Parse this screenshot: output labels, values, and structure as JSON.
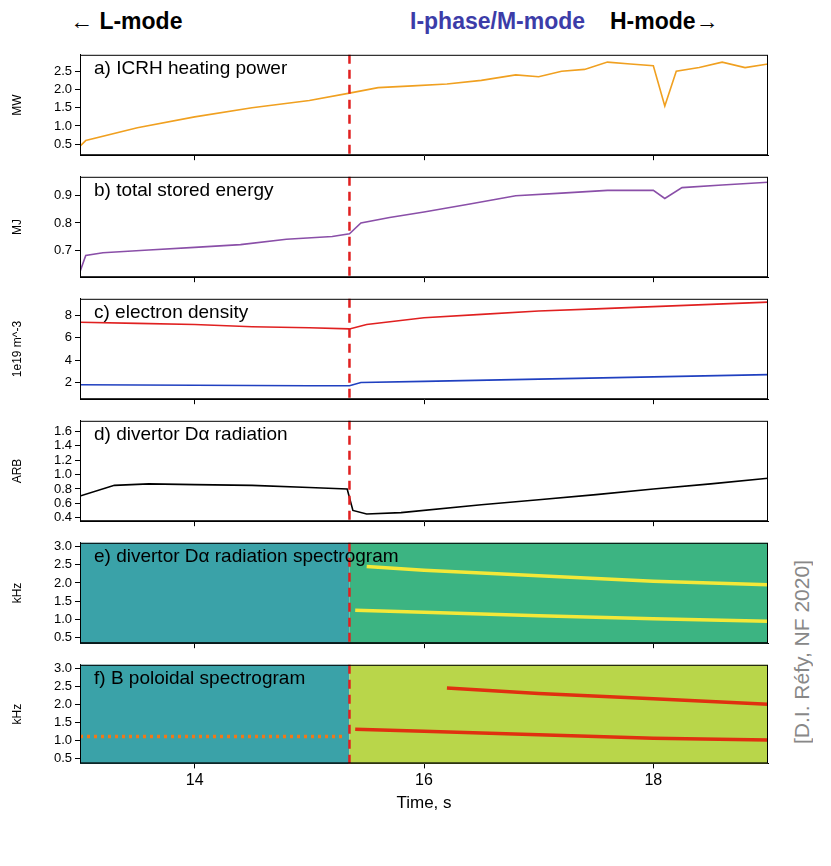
{
  "header": {
    "left": "← L-mode",
    "middle": "I-phase/M-mode",
    "right": "H-mode→"
  },
  "citation": "[D.I. Réfy, NF 2020]",
  "transition_time": 15.35,
  "chart_data": [
    {
      "type": "line",
      "title": "a) ICRH heating power",
      "y_label": "MW",
      "xlim": [
        13.0,
        19.0
      ],
      "xticks": [
        14,
        16,
        18
      ],
      "ylim": [
        0.2,
        2.95
      ],
      "yticks": [
        0.5,
        {
          "value": 1,
          "label": "1.0"
        },
        1.5,
        {
          "value": 2,
          "label": "2.0"
        },
        2.5
      ],
      "grid": false,
      "tick_labels": "y",
      "series": [
        {
          "color": "#f0a020",
          "x": [
            13.0,
            13.05,
            13.5,
            14.0,
            14.5,
            15.0,
            15.35,
            15.6,
            15.9,
            16.2,
            16.5,
            16.8,
            17.0,
            17.2,
            17.4,
            17.6,
            17.8,
            18.0,
            18.1,
            18.2,
            18.4,
            18.6,
            18.8,
            19.0
          ],
          "values": [
            0.45,
            0.6,
            0.95,
            1.25,
            1.5,
            1.7,
            1.9,
            2.05,
            2.1,
            2.15,
            2.25,
            2.4,
            2.35,
            2.5,
            2.55,
            2.75,
            2.7,
            2.65,
            1.55,
            2.5,
            2.6,
            2.75,
            2.6,
            2.7
          ]
        }
      ]
    },
    {
      "type": "line",
      "title": "b) total stored energy",
      "y_label": "MJ",
      "xlim": [
        13.0,
        19.0
      ],
      "xticks": [
        14,
        16,
        18
      ],
      "ylim": [
        0.6,
        0.97
      ],
      "yticks": [
        0.7,
        0.8,
        0.9
      ],
      "grid": false,
      "tick_labels": "y",
      "series": [
        {
          "color": "#8a4fa8",
          "x": [
            13.0,
            13.05,
            13.2,
            13.6,
            14.0,
            14.4,
            14.8,
            15.2,
            15.35,
            15.45,
            15.7,
            16.0,
            16.4,
            16.8,
            17.2,
            17.6,
            18.0,
            18.1,
            18.25,
            18.6,
            19.0
          ],
          "values": [
            0.62,
            0.68,
            0.69,
            0.7,
            0.71,
            0.72,
            0.74,
            0.75,
            0.76,
            0.8,
            0.82,
            0.84,
            0.87,
            0.9,
            0.91,
            0.92,
            0.92,
            0.89,
            0.93,
            0.94,
            0.95
          ]
        }
      ]
    },
    {
      "type": "line",
      "title": "c) electron density",
      "y_label": "1e19 m^-3",
      "xlim": [
        13.0,
        19.0
      ],
      "xticks": [
        14,
        16,
        18
      ],
      "ylim": [
        0.5,
        9.5
      ],
      "yticks": [
        2,
        4,
        6,
        8
      ],
      "grid": false,
      "tick_labels": "y",
      "series": [
        {
          "color": "#e02020",
          "x": [
            13.0,
            13.5,
            14.0,
            14.5,
            15.0,
            15.35,
            15.5,
            16.0,
            16.5,
            17.0,
            17.5,
            18.0,
            18.5,
            19.0
          ],
          "values": [
            7.4,
            7.3,
            7.2,
            7.0,
            6.9,
            6.8,
            7.2,
            7.8,
            8.1,
            8.4,
            8.6,
            8.8,
            9.0,
            9.2
          ]
        },
        {
          "color": "#2040c0",
          "x": [
            13.0,
            14.0,
            15.0,
            15.35,
            15.45,
            16.0,
            17.0,
            18.0,
            19.0
          ],
          "values": [
            1.8,
            1.75,
            1.7,
            1.7,
            2.0,
            2.1,
            2.3,
            2.5,
            2.7
          ]
        }
      ]
    },
    {
      "type": "line",
      "title": "d) divertor Dα radiation",
      "y_label": "ARB",
      "xlim": [
        13.0,
        19.0
      ],
      "xticks": [
        14,
        16,
        18
      ],
      "ylim": [
        0.35,
        1.75
      ],
      "yticks": [
        0.4,
        0.6,
        0.8,
        {
          "value": 1,
          "label": "1.0"
        },
        1.2,
        1.4,
        1.6
      ],
      "grid": false,
      "tick_labels": "y",
      "series": [
        {
          "color": "#000000",
          "x": [
            13.0,
            13.3,
            13.6,
            14.0,
            14.5,
            15.0,
            15.33,
            15.38,
            15.5,
            15.8,
            16.5,
            17.0,
            17.5,
            18.0,
            18.5,
            19.0
          ],
          "values": [
            0.7,
            0.85,
            0.87,
            0.86,
            0.85,
            0.82,
            0.8,
            0.5,
            0.45,
            0.47,
            0.58,
            0.65,
            0.72,
            0.8,
            0.87,
            0.95
          ]
        }
      ]
    },
    {
      "type": "spectrogram",
      "title": "e) divertor Dα radiation spectrogram",
      "y_label": "kHz",
      "xlim": [
        13.0,
        19.0
      ],
      "xticks": [
        14,
        16,
        18
      ],
      "ylim": [
        0.35,
        3.1
      ],
      "yticks": [
        0.5,
        {
          "value": 1,
          "label": "1.0"
        },
        1.5,
        {
          "value": 2,
          "label": "2.0"
        },
        2.5,
        {
          "value": 3,
          "label": "3.0"
        }
      ],
      "grid": false,
      "tick_labels": "y",
      "series": [
        {
          "color": "#f4e838",
          "x": [
            15.4,
            16,
            17,
            18,
            19
          ],
          "values": [
            1.25,
            1.2,
            1.1,
            1.02,
            0.95
          ]
        },
        {
          "color": "#f4e838",
          "x": [
            15.5,
            16,
            17,
            18,
            19
          ],
          "values": [
            2.45,
            2.35,
            2.2,
            2.05,
            1.95
          ]
        }
      ]
    },
    {
      "type": "spectrogram",
      "title": "f) B poloidal spectrogram",
      "y_label": "kHz",
      "x_label": "Time, s",
      "xlim": [
        13.0,
        19.0
      ],
      "xticks": [
        14,
        16,
        18
      ],
      "ylim": [
        0.35,
        3.1
      ],
      "yticks": [
        0.5,
        {
          "value": 1,
          "label": "1.0"
        },
        1.5,
        {
          "value": 2,
          "label": "2.0"
        },
        2.5,
        {
          "value": 3,
          "label": "3.0"
        }
      ],
      "grid": false,
      "series": [
        {
          "color": "#f07818",
          "line_style": "dotted",
          "x": [
            13.0,
            15.3
          ],
          "values": [
            1.1,
            1.1
          ]
        },
        {
          "color": "#e03010",
          "x": [
            15.4,
            16,
            17,
            18,
            19
          ],
          "values": [
            1.3,
            1.25,
            1.15,
            1.05,
            1.0
          ]
        },
        {
          "color": "#e03010",
          "x": [
            16.2,
            17,
            18,
            19
          ],
          "values": [
            2.45,
            2.3,
            2.15,
            2.0
          ]
        }
      ]
    }
  ]
}
